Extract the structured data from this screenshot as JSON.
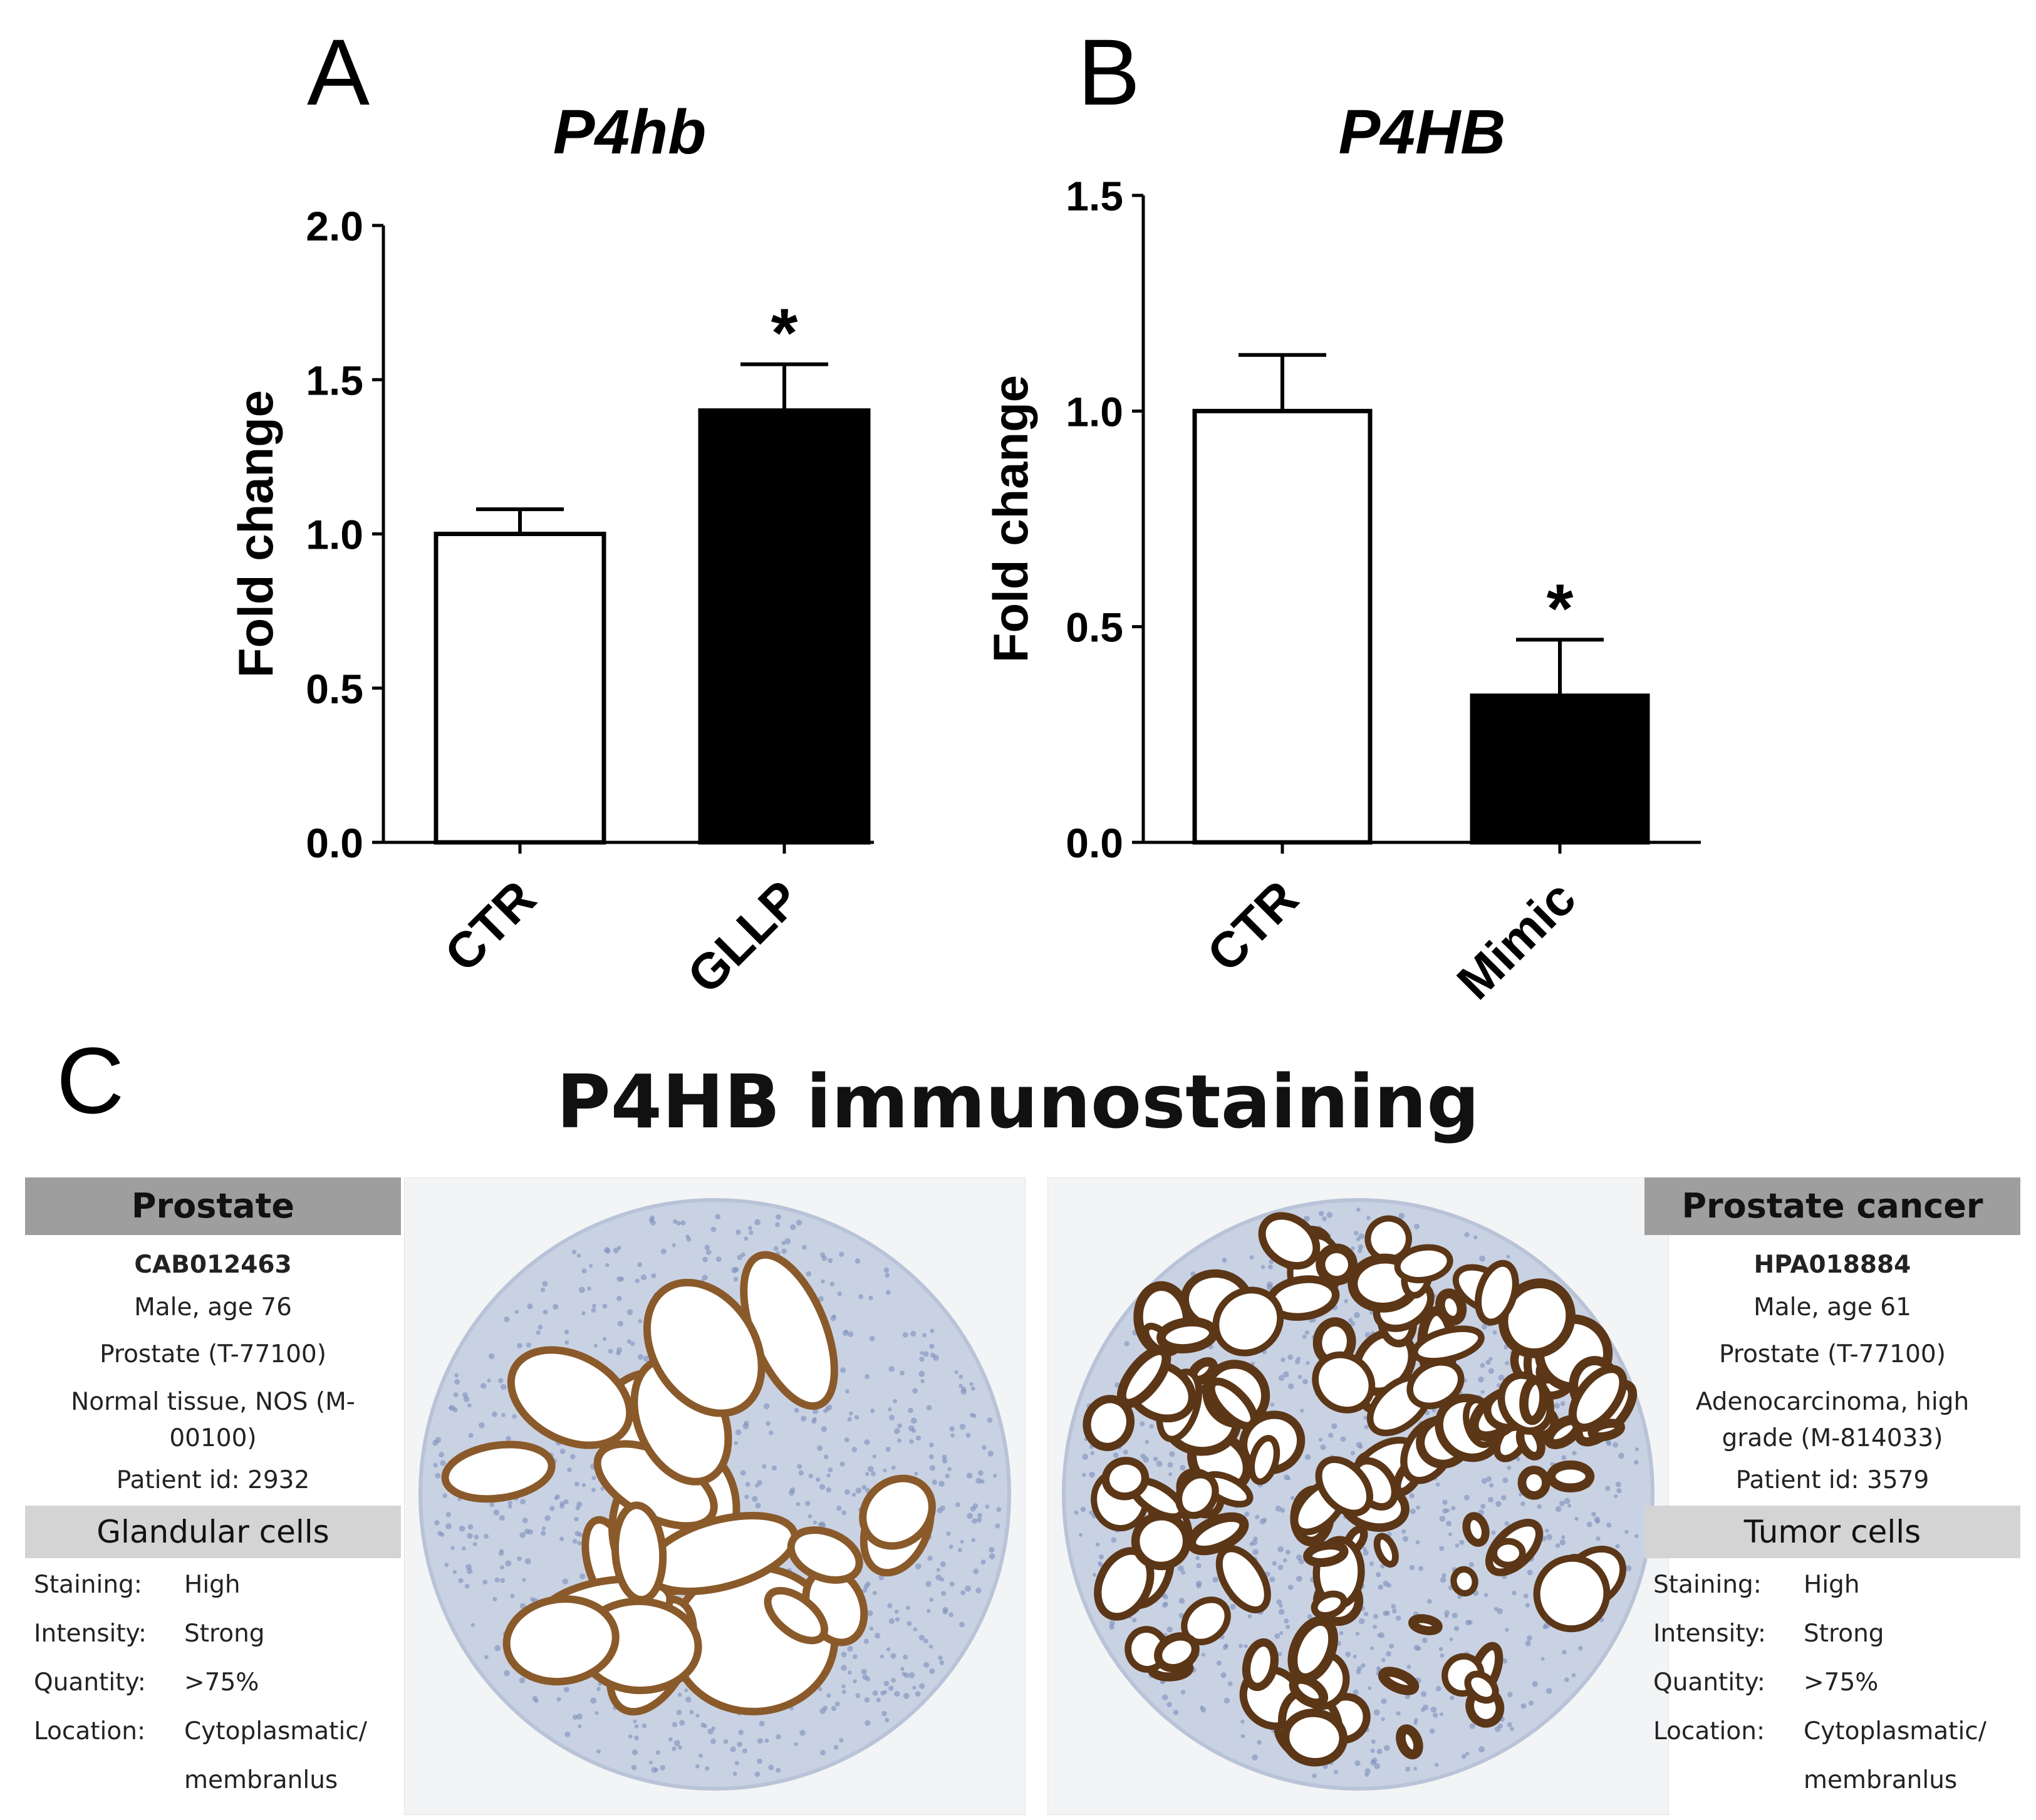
{
  "panels": {
    "a": "A",
    "b": "B",
    "c": "C"
  },
  "chart_data": [
    {
      "type": "bar",
      "title": "P4hb",
      "ylabel": "Fold change",
      "xlabel": "",
      "categories": [
        "CTR",
        "GLLP"
      ],
      "values": [
        1.0,
        1.4
      ],
      "errors": [
        0.08,
        0.15
      ],
      "bar_colors": [
        "#ffffff",
        "#000000"
      ],
      "significance": [
        "",
        "*"
      ],
      "ylim": [
        0,
        2.0
      ],
      "yticks": [
        0.0,
        0.5,
        1.0,
        1.5,
        2.0
      ],
      "ytick_labels": [
        "0.0",
        "0.5",
        "1.0",
        "1.5",
        "2.0"
      ]
    },
    {
      "type": "bar",
      "title": "P4HB",
      "ylabel": "Fold change",
      "xlabel": "",
      "categories": [
        "CTR",
        "Mimic"
      ],
      "values": [
        1.0,
        0.34
      ],
      "errors": [
        0.13,
        0.13
      ],
      "bar_colors": [
        "#ffffff",
        "#000000"
      ],
      "significance": [
        "",
        "*"
      ],
      "ylim": [
        0,
        1.5
      ],
      "yticks": [
        0.0,
        0.5,
        1.0,
        1.5
      ],
      "ytick_labels": [
        "0.0",
        "0.5",
        "1.0",
        "1.5"
      ]
    }
  ],
  "immuno": {
    "title": "P4HB immunostaining",
    "normal": {
      "header": "Prostate",
      "antibody": "CAB012463",
      "patient": "Male, age 76",
      "tissue": "Prostate (T-77100)",
      "diagnosis_1": "Normal tissue, NOS (M-",
      "diagnosis_2": "00100)",
      "patient_id": "Patient id: 2932",
      "cell_type": "Glandular cells",
      "staining_k": "Staining:",
      "staining_v": "High",
      "intensity_k": "Intensity:",
      "intensity_v": "Strong",
      "quantity_k": "Quantity:",
      "quantity_v": ">75%",
      "location_k": "Location:",
      "location_v1": "Cytoplasmatic/",
      "location_v2": "membranlus"
    },
    "cancer": {
      "header": "Prostate cancer",
      "antibody": "HPA018884",
      "patient": "Male, age 61",
      "tissue": "Prostate (T-77100)",
      "diagnosis_1": "Adenocarcinoma, high",
      "diagnosis_2": "grade  (M-814033)",
      "patient_id": "Patient id: 3579",
      "cell_type": "Tumor cells",
      "staining_k": "Staining:",
      "staining_v": "High",
      "intensity_k": "Intensity:",
      "intensity_v": "Strong",
      "quantity_k": "Quantity:",
      "quantity_v": ">75%",
      "location_k": "Location:",
      "location_v1": "Cytoplasmatic/",
      "location_v2": "membranlus"
    }
  },
  "colors": {
    "header_bg": "#9e9e9e",
    "subheader_bg": "#d4d4d4",
    "tissue_bg": "#f3f4f5",
    "stroma": "#c9d2e3",
    "gland_stain": "#8a5a2b",
    "gland_dark": "#5b3617"
  }
}
